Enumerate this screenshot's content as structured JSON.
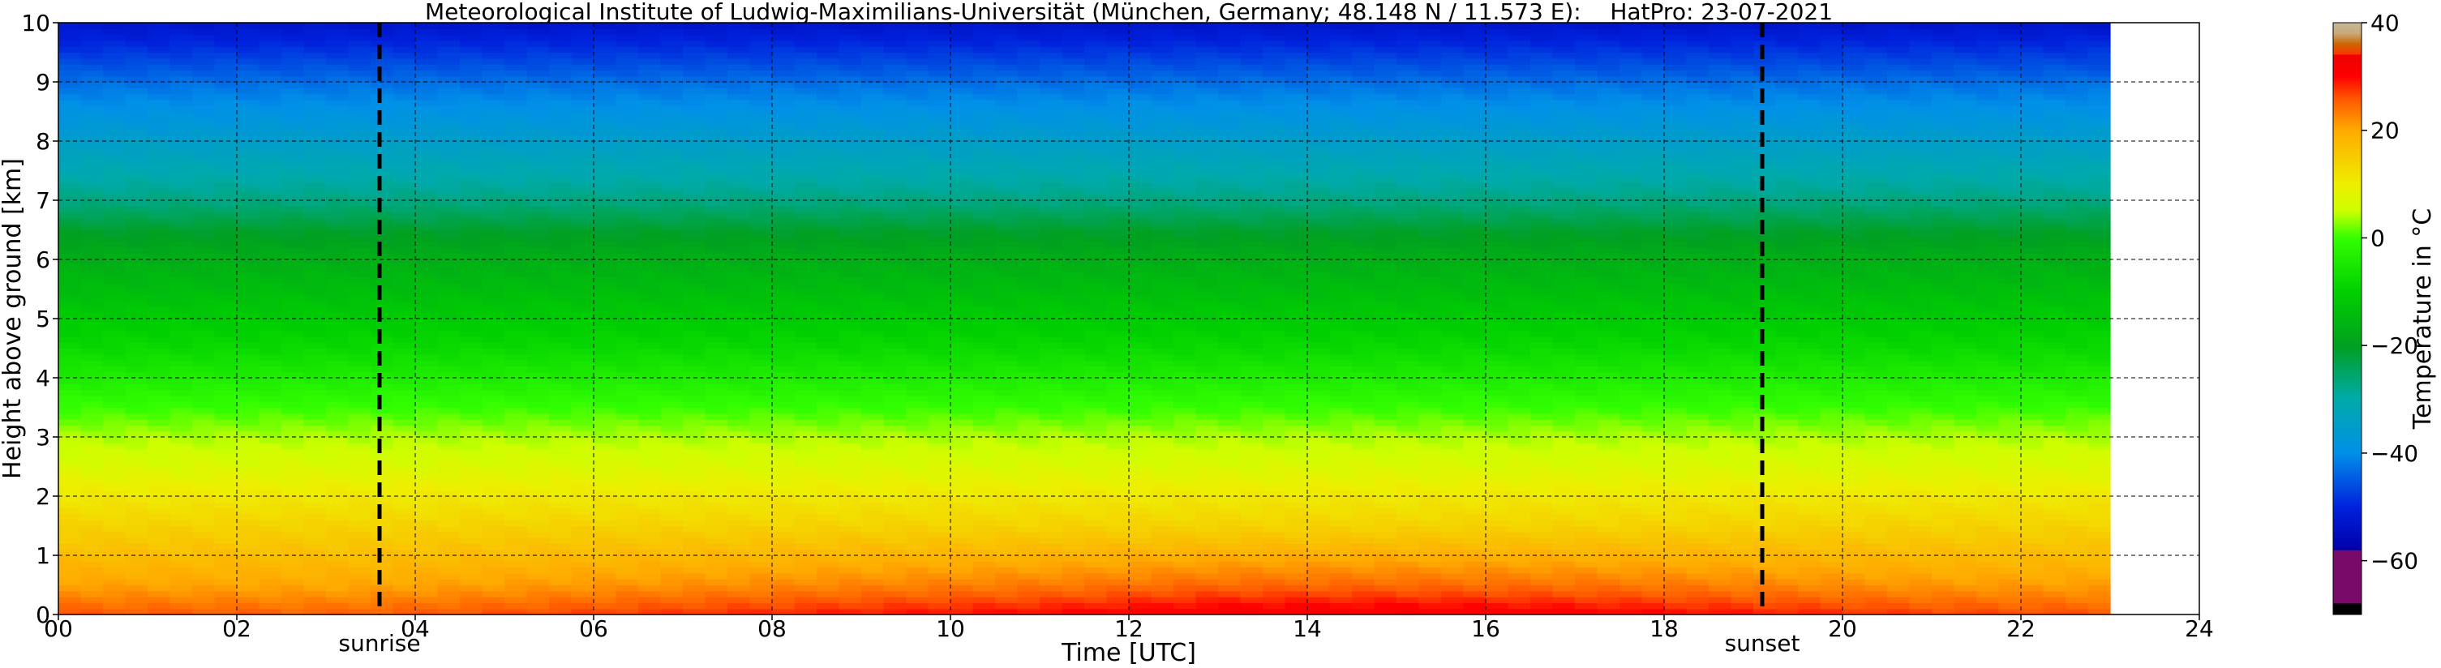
{
  "chart_data": {
    "type": "heatmap",
    "title": "Meteorological Institute of Ludwig-Maximilians-Universität (München, Germany; 48.148 N / 11.573 E):    HatPro: 23-07-2021",
    "xlabel": "Time [UTC]",
    "ylabel": "Height above ground [km]",
    "xlim": [
      0,
      24
    ],
    "ylim": [
      0,
      10
    ],
    "data_xlim": [
      0,
      23
    ],
    "x_ticks": [
      "00",
      "02",
      "04",
      "06",
      "08",
      "10",
      "12",
      "14",
      "16",
      "18",
      "20",
      "22",
      "24"
    ],
    "y_ticks": [
      "0",
      "1",
      "2",
      "3",
      "4",
      "5",
      "6",
      "7",
      "8",
      "9",
      "10"
    ],
    "grid": true,
    "events": [
      {
        "name": "sunrise",
        "time": 3.6
      },
      {
        "name": "sunset",
        "time": 19.1
      }
    ],
    "colorbar": {
      "label": "Temperature in °C",
      "ticks": [
        "40",
        "20",
        "0",
        "−20",
        "−40",
        "−60"
      ],
      "tick_values": [
        40,
        20,
        0,
        -20,
        -40,
        -60
      ],
      "range": [
        -70,
        40
      ],
      "stops": [
        {
          "v": -70,
          "c": "#000000"
        },
        {
          "v": -68,
          "c": "#000000"
        },
        {
          "v": -67.9,
          "c": "#7a0a6a"
        },
        {
          "v": -58.1,
          "c": "#7a0a6a"
        },
        {
          "v": -58,
          "c": "#0000aa"
        },
        {
          "v": -50,
          "c": "#0022dd"
        },
        {
          "v": -40,
          "c": "#0090e8"
        },
        {
          "v": -30,
          "c": "#00aaaa"
        },
        {
          "v": -20,
          "c": "#00a020"
        },
        {
          "v": -10,
          "c": "#00d000"
        },
        {
          "v": 0,
          "c": "#33ff00"
        },
        {
          "v": 5,
          "c": "#ccff00"
        },
        {
          "v": 10,
          "c": "#eeee00"
        },
        {
          "v": 20,
          "c": "#ffaa00"
        },
        {
          "v": 26,
          "c": "#ff5500"
        },
        {
          "v": 30,
          "c": "#ff0000"
        },
        {
          "v": 34,
          "c": "#ee0000"
        },
        {
          "v": 34.1,
          "c": "#ff3300"
        },
        {
          "v": 36,
          "c": "#cc6600"
        },
        {
          "v": 38,
          "c": "#c8a878"
        },
        {
          "v": 40,
          "c": "#c8b898"
        }
      ]
    },
    "temperature_profile": {
      "height_km": [
        0,
        0.5,
        1,
        1.5,
        2,
        2.5,
        3,
        3.5,
        4,
        4.5,
        5,
        5.5,
        6,
        6.5,
        7,
        7.5,
        8,
        8.5,
        9,
        9.5,
        10
      ],
      "temperature_c": [
        28,
        22,
        18,
        14,
        11,
        7,
        4,
        0,
        -4,
        -8,
        -11,
        -14,
        -17,
        -21,
        -27,
        -31,
        -35,
        -39,
        -43,
        -48,
        -53
      ]
    },
    "diurnal_surface_anomaly_c": {
      "time_utc": [
        0,
        3,
        6,
        9,
        11,
        13,
        15,
        17,
        19,
        21,
        23
      ],
      "delta": [
        -2,
        -3,
        -1,
        1,
        2,
        4,
        4,
        3,
        1,
        -1,
        -2
      ]
    }
  }
}
